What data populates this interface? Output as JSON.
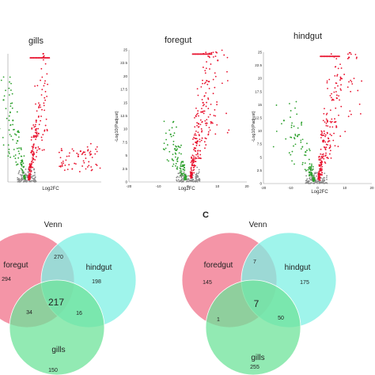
{
  "panel_letters": {
    "c": "C"
  },
  "volcano": {
    "xlabel": "Log2FC",
    "ylabel": "-Log10(Padjust)",
    "colors": {
      "up": "#e8112d",
      "down": "#2ca02c",
      "ns": "#8a8a8a",
      "axis": "#999999"
    },
    "panels": [
      {
        "title": "gills"
      },
      {
        "title": "foregut",
        "y_ticks": [
          "25",
          "22.5",
          "20",
          "17.5",
          "15",
          "12.5",
          "10",
          "7.5",
          "5",
          "2.5",
          "0"
        ],
        "x_ticks": [
          "-20",
          "-10",
          "0",
          "10",
          "20"
        ]
      },
      {
        "title": "hindgut",
        "y_ticks": [
          "25",
          "22.5",
          "20",
          "17.5",
          "15",
          "12.5",
          "10",
          "7.5",
          "5",
          "2.5",
          "0"
        ],
        "x_ticks": [
          "-20",
          "-10",
          "0",
          "10",
          "20"
        ]
      }
    ]
  },
  "chart_data": [
    {
      "type": "scatter",
      "title": "gills",
      "xlabel": "Log2FC",
      "ylabel": "",
      "series": [
        {
          "name": "up",
          "x": [
            1.0,
            1.5,
            2.2,
            3.0,
            4.0,
            5.5,
            7.0,
            22.0,
            23.0
          ],
          "y": [
            1.0,
            3.0,
            6.0,
            9.0,
            12.0,
            15.0,
            25.0,
            5.0,
            6.0
          ]
        },
        {
          "name": "down",
          "x": [
            -1.0,
            -2.0,
            -4.0,
            -6.0,
            -10.0
          ],
          "y": [
            1.0,
            4.0,
            8.0,
            12.0,
            16.0
          ]
        }
      ]
    },
    {
      "type": "scatter",
      "title": "foregut",
      "xlabel": "Log2FC",
      "ylabel": "-Log10(Padjust)",
      "xlim": [
        -20,
        20
      ],
      "ylim": [
        0,
        25
      ],
      "series": [
        {
          "name": "up",
          "x": [
            1.0,
            1.5,
            2.5,
            3.5,
            5.0,
            7.0,
            10.0
          ],
          "y": [
            1.5,
            4.0,
            7.5,
            11.0,
            15.0,
            19.0,
            23.0
          ]
        },
        {
          "name": "down",
          "x": [
            -1.0,
            -2.0,
            -4.0,
            -6.0
          ],
          "y": [
            1.0,
            3.0,
            6.0,
            9.0
          ]
        }
      ]
    },
    {
      "type": "scatter",
      "title": "hindgut",
      "xlabel": "Log2FC",
      "ylabel": "-Log10(Padjust)",
      "xlim": [
        -20,
        20
      ],
      "ylim": [
        0,
        25
      ],
      "series": [
        {
          "name": "up",
          "x": [
            1.0,
            1.5,
            2.5,
            4.0,
            6.0,
            9.0,
            12.0
          ],
          "y": [
            1.5,
            4.0,
            8.0,
            12.0,
            16.0,
            20.0,
            24.0
          ]
        },
        {
          "name": "down",
          "x": [
            -1.0,
            -2.0,
            -4.0,
            -7.0,
            -12.0
          ],
          "y": [
            1.0,
            3.0,
            6.0,
            9.0,
            12.0
          ]
        }
      ]
    },
    {
      "type": "venn",
      "title": "Venn",
      "sets": [
        "foregut",
        "hindgut",
        "gills"
      ],
      "colors": [
        "#f0728a",
        "#7ff0e4",
        "#6ee39a"
      ],
      "regions": {
        "foregut_only": 294,
        "hindgut_only": 198,
        "gills_only": 150,
        "foregut_hindgut": 270,
        "foregut_gills": 34,
        "hindgut_gills": 16,
        "all_three": 217
      }
    },
    {
      "type": "venn",
      "title": "Venn",
      "sets": [
        "foredgut",
        "hindgut",
        "gills"
      ],
      "colors": [
        "#f0728a",
        "#7ff0e4",
        "#6ee39a"
      ],
      "regions": {
        "foregut_only": 145,
        "hindgut_only": 175,
        "gills_only": 255,
        "foregut_hindgut": 7,
        "foregut_gills": 1,
        "hindgut_gills": 50,
        "all_three": 7
      }
    }
  ]
}
